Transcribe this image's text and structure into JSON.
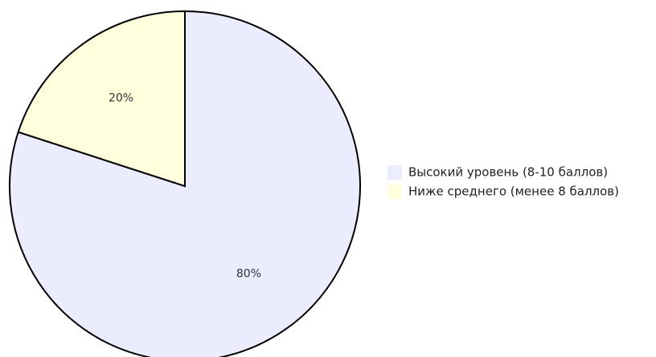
{
  "chart_data": {
    "type": "pie",
    "slices": [
      {
        "label": "Высокий уровень (8-10 баллов)",
        "value": 80,
        "display": "80%",
        "color": "#ececff"
      },
      {
        "label": "Ниже среднего (менее 8 баллов)",
        "value": 20,
        "display": "20%",
        "color": "#ffffde"
      }
    ],
    "legend_position": "right",
    "outline_color": "#000000",
    "start_angle": "12 o'clock, clockwise"
  }
}
